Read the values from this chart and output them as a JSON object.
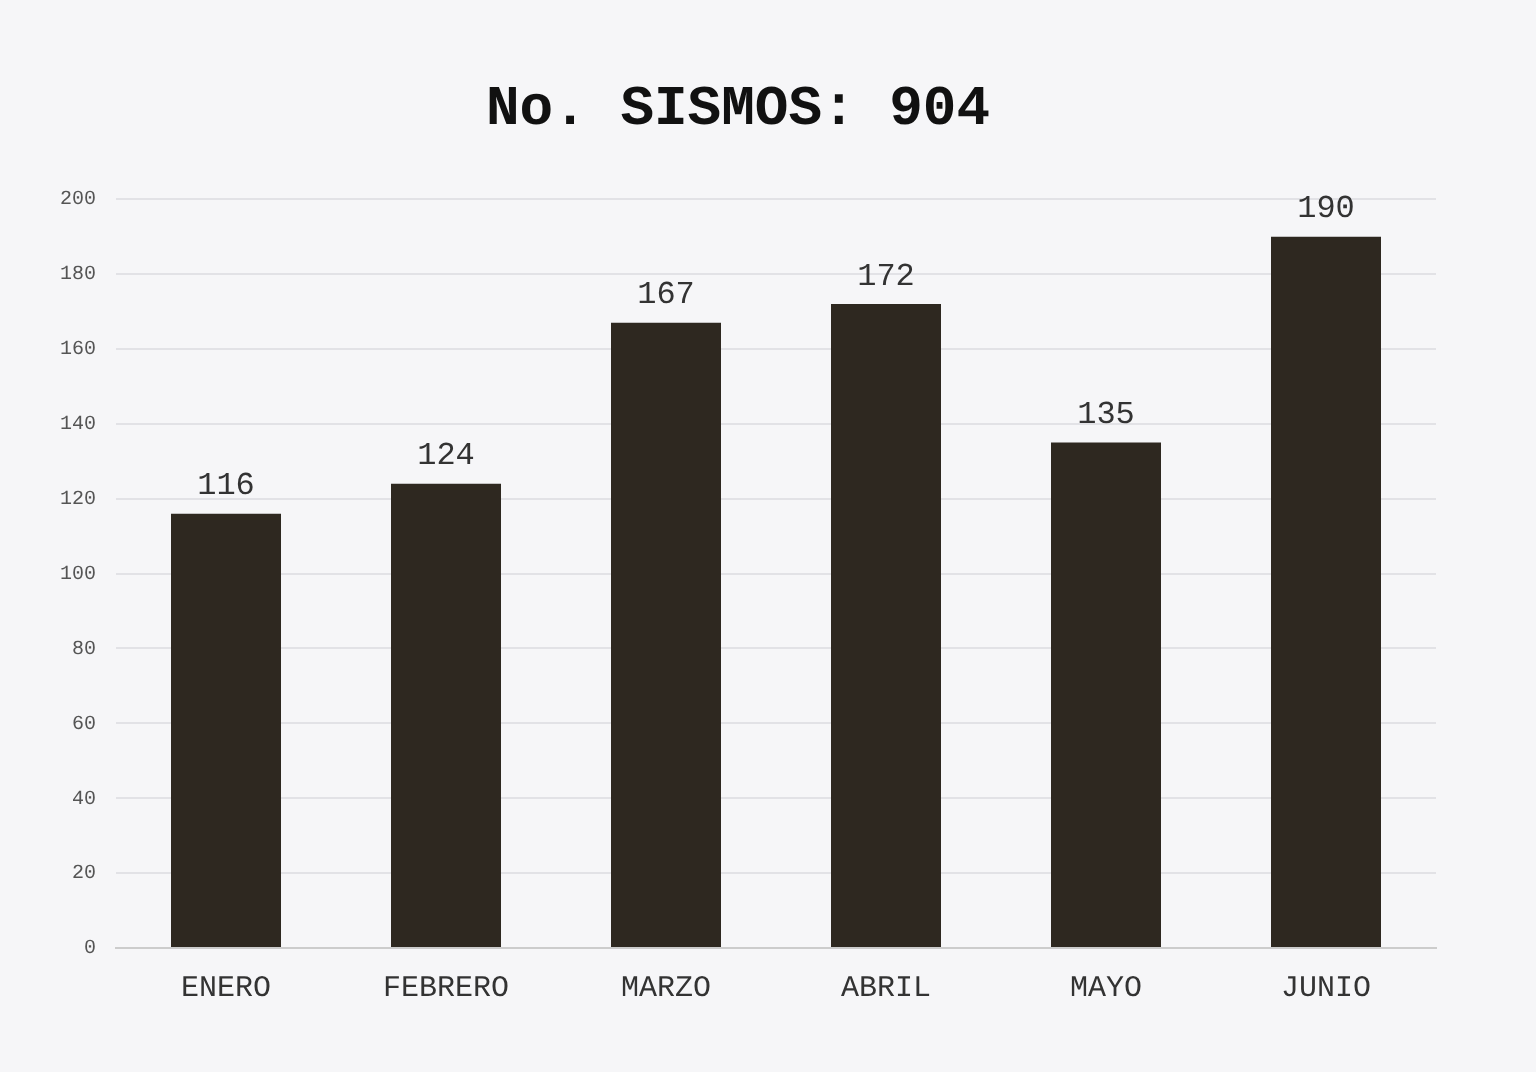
{
  "chart_data": {
    "type": "bar",
    "title": "No. SISMOS: 904",
    "categories": [
      "ENERO",
      "FEBRERO",
      "MARZO",
      "ABRIL",
      "MAYO",
      "JUNIO"
    ],
    "values": [
      116,
      124,
      167,
      172,
      135,
      190
    ],
    "color": "#2e2820",
    "ylim": [
      0,
      200
    ],
    "yticks": [
      0,
      20,
      40,
      60,
      80,
      100,
      120,
      140,
      160,
      180,
      200
    ],
    "grid": "y",
    "data_labels": true,
    "legend": false
  }
}
